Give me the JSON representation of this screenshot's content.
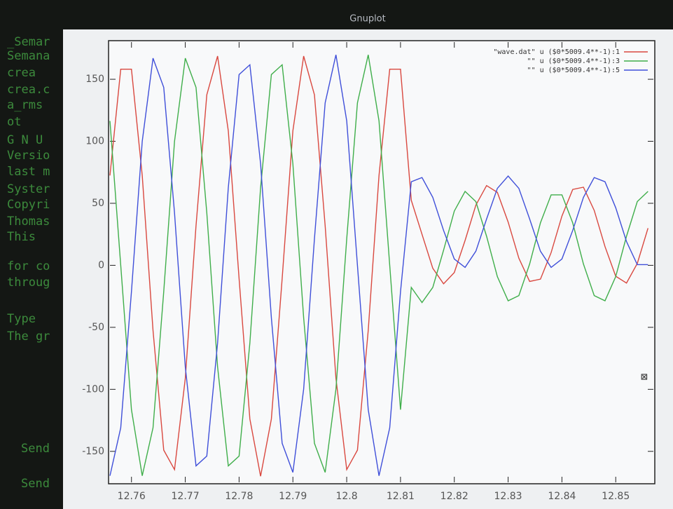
{
  "window_title": "Gnuplot",
  "terminal": {
    "lines": [
      "_Semar",
      "Semana",
      "crea",
      "crea.c",
      "a_rms",
      "ot",
      "G N U",
      "Versio",
      "last m",
      "Syster",
      "Copyri",
      "Thomas",
      "This",
      "for co",
      "throug",
      "Type",
      "The gr",
      "Send",
      "Send"
    ]
  },
  "chart_data": {
    "type": "line",
    "x": [
      12.756,
      12.758,
      12.76,
      12.762,
      12.764,
      12.766,
      12.768,
      12.77,
      12.772,
      12.774,
      12.776,
      12.778,
      12.78,
      12.782,
      12.784,
      12.786,
      12.788,
      12.79,
      12.792,
      12.794,
      12.796,
      12.798,
      12.8,
      12.802,
      12.804,
      12.806,
      12.808,
      12.81,
      12.812,
      12.814,
      12.816,
      12.818,
      12.82,
      12.822,
      12.824,
      12.826,
      12.828,
      12.83,
      12.832,
      12.834,
      12.836,
      12.838,
      12.84,
      12.842,
      12.844,
      12.846,
      12.848,
      12.85,
      12.852,
      12.854,
      12.856
    ],
    "series": [
      {
        "name": "\"wave.dat\" u ($0*5009.4**-1):1",
        "color": "#d9483f",
        "values": [
          72.4,
          158.1,
          158.1,
          72.4,
          -52.5,
          -149.0,
          -164.7,
          -91.1,
          31.9,
          137.5,
          168.7,
          108.4,
          -10.7,
          -123.9,
          -170,
          -123.9,
          -10.7,
          108.4,
          168.7,
          137.5,
          31.9,
          -91.1,
          -164.7,
          -149.0,
          -52.5,
          72.4,
          158.1,
          158.1,
          52.4,
          25,
          -2.4,
          -14.9,
          -5.8,
          20.0,
          48.5,
          64.3,
          58.8,
          34.9,
          5.7,
          -13.0,
          -11.2,
          10.3,
          39.7,
          61.2,
          63.0,
          44.3,
          15.1,
          -8.8,
          -14.3,
          1.5,
          30.0
        ]
      },
      {
        "name": "\"\" u ($0*5009.4**-1):3",
        "color": "#3fae4a",
        "values": [
          116.4,
          0,
          -116.4,
          -169.7,
          -131.0,
          -21.3,
          99.9,
          167.0,
          143.5,
          42.3,
          -81.9,
          -161.7,
          -153.8,
          -62.6,
          62.6,
          153.8,
          161.7,
          81.9,
          -42.3,
          -143.5,
          -167.0,
          -99.9,
          21.3,
          131.0,
          169.7,
          116.4,
          0,
          -116.4,
          -17.8,
          -30,
          -17.8,
          12.2,
          43.7,
          59.6,
          51.4,
          23.4,
          -9.1,
          -28.6,
          -24.4,
          1.1,
          34.2,
          56.8,
          56.8,
          34.2,
          1.1,
          -24.4,
          -28.6,
          -9.1,
          23.4,
          51.4,
          59.6
        ]
      },
      {
        "name": "\"\" u ($0*5009.4**-1):5",
        "color": "#3f4fd9",
        "values": [
          -169.7,
          -131.0,
          -21.3,
          99.9,
          167.0,
          143.5,
          42.3,
          -81.9,
          -161.7,
          -153.8,
          -62.6,
          62.6,
          153.8,
          161.7,
          81.9,
          -42.3,
          -143.5,
          -167.0,
          -99.9,
          21.3,
          131.0,
          169.7,
          116.4,
          0,
          -116.4,
          -169.7,
          -131.0,
          -21.3,
          67.4,
          70.8,
          54.8,
          28.1,
          5.1,
          -1.7,
          11.4,
          37.3,
          62.0,
          72.0,
          62.0,
          37.3,
          11.4,
          -1.7,
          5.1,
          28.1,
          54.8,
          70.8,
          67.4,
          46.4,
          19.2,
          0.6,
          0.6
        ]
      }
    ],
    "xlim": [
      12.756,
      12.857
    ],
    "xticks": [
      12.76,
      12.77,
      12.78,
      12.79,
      12.8,
      12.81,
      12.82,
      12.83,
      12.84,
      12.85
    ],
    "ylim": [
      -175,
      180
    ],
    "yticks": [
      -150,
      -100,
      -50,
      0,
      50,
      100,
      150
    ],
    "legend": "upper-right"
  }
}
